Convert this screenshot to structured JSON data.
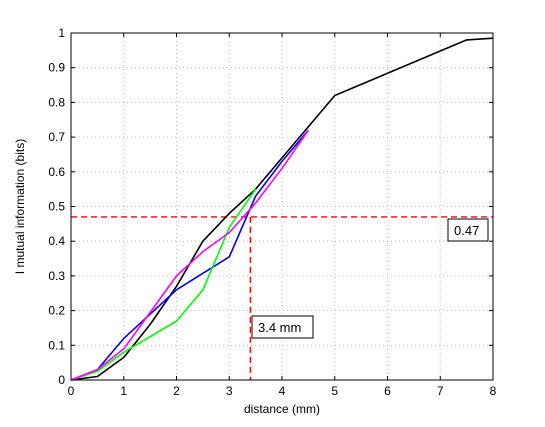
{
  "chart_data": {
    "type": "line",
    "title": "",
    "xlabel": "distance (mm)",
    "ylabel": "I mutual information (bits)",
    "xlim": [
      0,
      8
    ],
    "ylim": [
      0,
      1
    ],
    "xticks": [
      0,
      1,
      2,
      3,
      4,
      5,
      6,
      7,
      8
    ],
    "yticks": [
      0,
      0.1,
      0.2,
      0.3,
      0.4,
      0.5,
      0.6,
      0.7,
      0.8,
      0.9,
      1
    ],
    "grid": true,
    "series": [
      {
        "color": "#000000",
        "x": [
          0,
          0.5,
          1,
          1.5,
          2,
          2.5,
          3,
          3.5,
          4,
          5,
          7.5,
          8
        ],
        "y": [
          0,
          0.01,
          0.065,
          0.16,
          0.27,
          0.4,
          0.48,
          0.55,
          0.64,
          0.82,
          0.98,
          0.985
        ]
      },
      {
        "color": "#0000ff",
        "x": [
          0,
          0.5,
          1,
          2,
          3,
          3.5,
          4,
          4.5
        ],
        "y": [
          0,
          0.03,
          0.12,
          0.26,
          0.355,
          0.53,
          0.63,
          0.72
        ]
      },
      {
        "color": "#00ff00",
        "x": [
          0,
          0.5,
          1,
          2,
          2.5,
          3,
          3.5
        ],
        "y": [
          0,
          0.025,
          0.08,
          0.17,
          0.26,
          0.44,
          0.55
        ]
      },
      {
        "color": "#ff00ff",
        "x": [
          0,
          0.5,
          1,
          2,
          2.5,
          3,
          3.5,
          4,
          4.5
        ],
        "y": [
          0,
          0.03,
          0.09,
          0.3,
          0.37,
          0.425,
          0.51,
          0.61,
          0.72
        ]
      }
    ],
    "reference_lines": {
      "color": "#ff0000",
      "x": 3.4,
      "y": 0.47
    },
    "annotations": [
      {
        "text": "0.47",
        "x": 7.4,
        "y": 0.43
      },
      {
        "text": "3.4 mm",
        "x": 3.4,
        "y": 0.155
      }
    ]
  }
}
